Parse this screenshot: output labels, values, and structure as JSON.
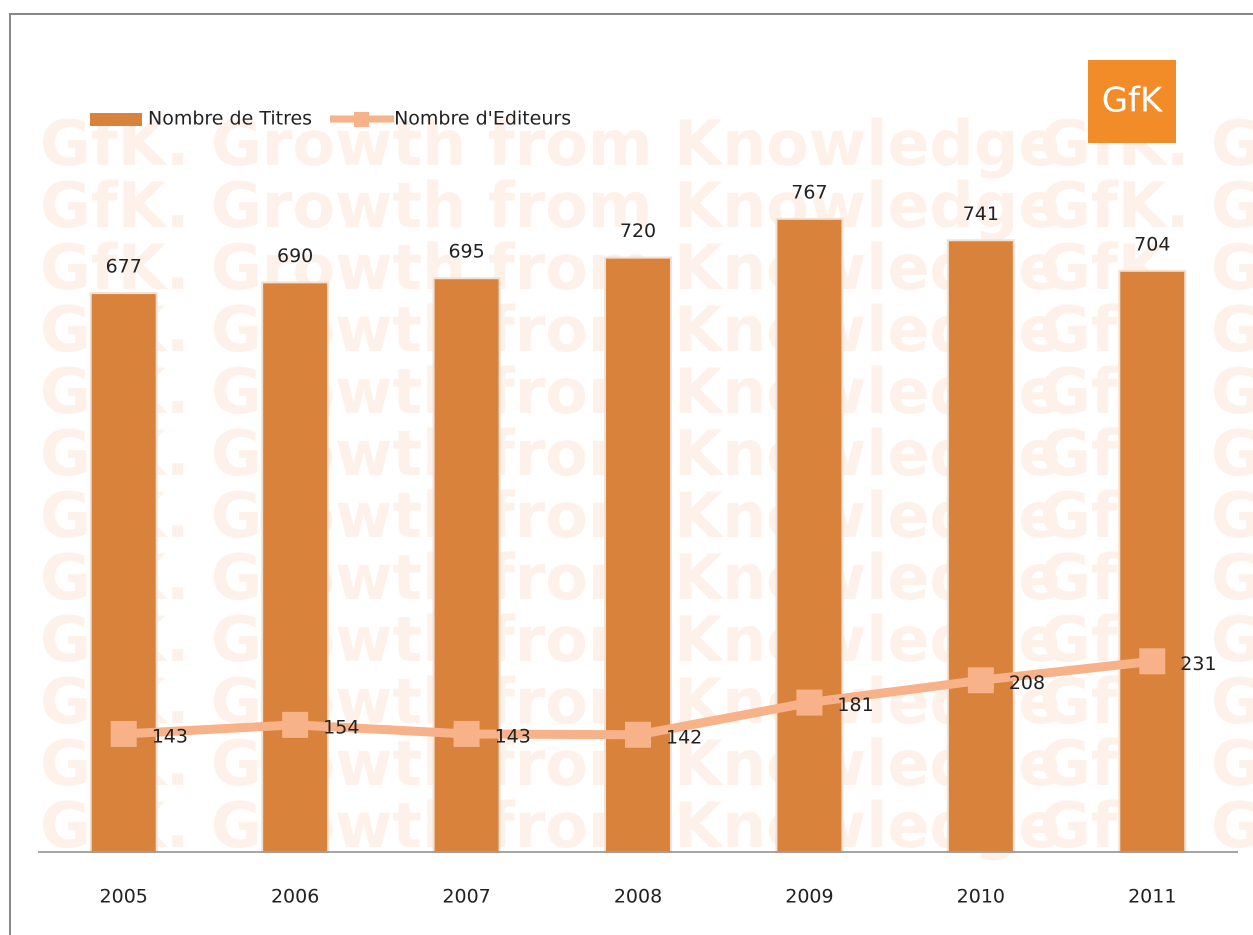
{
  "chart_data": {
    "type": "bar",
    "logo": "GfK",
    "watermark": "GfK. Growth from Knowledge",
    "categories": [
      "2005",
      "2006",
      "2007",
      "2008",
      "2009",
      "2010",
      "2011"
    ],
    "series": [
      {
        "name": "Nombre de Titres",
        "type": "bar",
        "color": "#d9823c",
        "values": [
          677,
          690,
          695,
          720,
          767,
          741,
          704
        ]
      },
      {
        "name": "Nombre d'Editeurs",
        "type": "line",
        "color": "#f7b28a",
        "values": [
          143,
          154,
          143,
          142,
          181,
          208,
          231
        ]
      }
    ],
    "ylim": [
      0,
      900
    ]
  }
}
